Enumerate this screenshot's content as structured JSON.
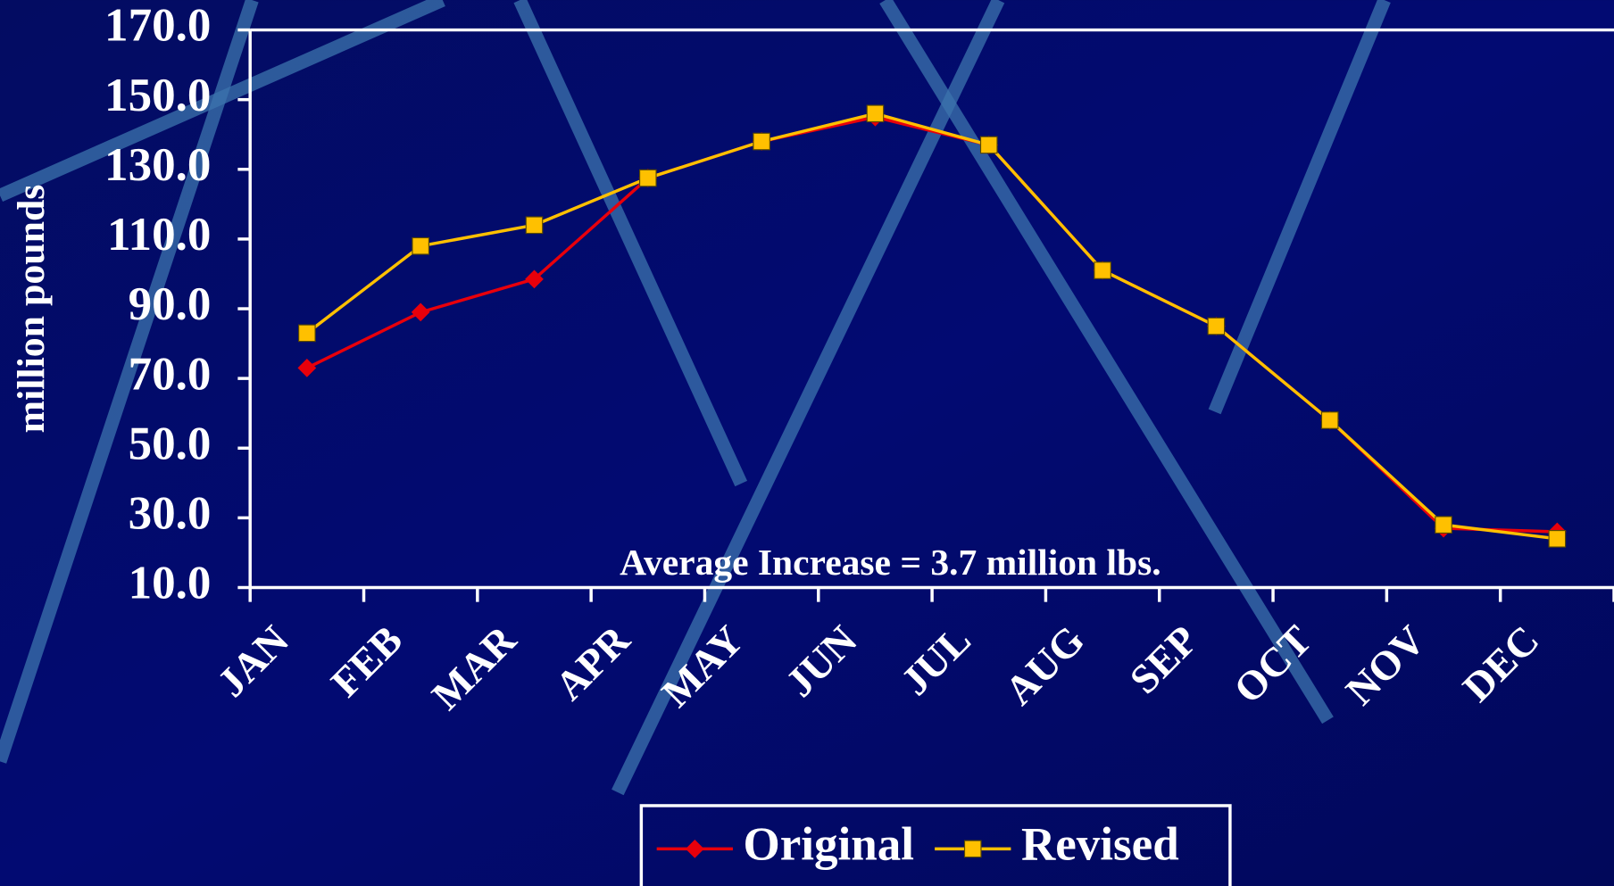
{
  "chart_data": {
    "type": "line",
    "y_label": "million pounds",
    "annotation": "Average Increase = 3.7 million lbs.",
    "categories": [
      "JAN",
      "FEB",
      "MAR",
      "APR",
      "MAY",
      "JUN",
      "JUL",
      "AUG",
      "SEP",
      "OCT",
      "NOV",
      "DEC"
    ],
    "series": [
      {
        "name": "Original",
        "color": "#e8000b",
        "marker": "diamond",
        "values": [
          73,
          89,
          98.5,
          127.5,
          138,
          145,
          137,
          101,
          85,
          58,
          27,
          26
        ]
      },
      {
        "name": "Revised",
        "color": "#ffc000",
        "marker": "square",
        "values": [
          83,
          108,
          114,
          127.5,
          138,
          146,
          137,
          101,
          85,
          58,
          28,
          24
        ]
      }
    ],
    "ylim": [
      10,
      170
    ],
    "yticks": [
      {
        "value": 10,
        "label": "10.0"
      },
      {
        "value": 30,
        "label": "30.0"
      },
      {
        "value": 50,
        "label": "50.0"
      },
      {
        "value": 70,
        "label": "70.0"
      },
      {
        "value": 90,
        "label": "90.0"
      },
      {
        "value": 110,
        "label": "110.0"
      },
      {
        "value": 130,
        "label": "130.0"
      },
      {
        "value": 150,
        "label": "150.0"
      },
      {
        "value": 170,
        "label": "170.0"
      }
    ],
    "legend": "bottom"
  }
}
